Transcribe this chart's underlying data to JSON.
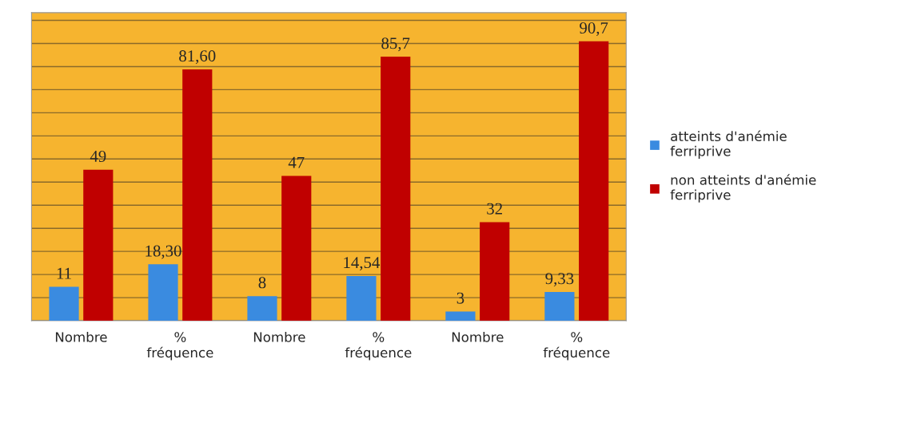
{
  "chart_data": {
    "type": "bar",
    "categories": [
      "Nombre",
      "%\nfréquence",
      "Nombre",
      "%\nfréquence",
      "Nombre",
      "%\nfréquence"
    ],
    "series": [
      {
        "name": "atteints d'anémie\nferriprive",
        "color": "#3a8be0",
        "values": [
          11,
          18.3,
          8,
          14.54,
          3,
          9.33
        ],
        "value_labels": [
          "11",
          "18,30",
          "8",
          "14,54",
          "3",
          "9,33"
        ]
      },
      {
        "name": "non atteints d'anémie\nferriprive",
        "color": "#c00000",
        "values": [
          49,
          81.6,
          47,
          85.7,
          32,
          90.7
        ],
        "value_labels": [
          "49",
          "81,60",
          "47",
          "85,7",
          "32",
          "90,7"
        ]
      }
    ],
    "ylim": [
      0,
      100
    ],
    "yticks": [
      {
        "value": 0,
        "label": null
      },
      {
        "value": 7.5,
        "label": null
      },
      {
        "value": 15,
        "label": null
      },
      {
        "value": 22.5,
        "label": null
      },
      {
        "value": 30,
        "label": null
      },
      {
        "value": 37.5,
        "label": null
      },
      {
        "value": 45,
        "label": null
      },
      {
        "value": 52.5,
        "label": null
      },
      {
        "value": 60,
        "label": null
      },
      {
        "value": 67.5,
        "label": null
      },
      {
        "value": 75,
        "label": null
      },
      {
        "value": 82.5,
        "label": null
      },
      {
        "value": 90,
        "label": null
      },
      {
        "value": 97.5,
        "label": null
      }
    ],
    "grid": "y",
    "legend": "right",
    "tick_labels": "x"
  }
}
